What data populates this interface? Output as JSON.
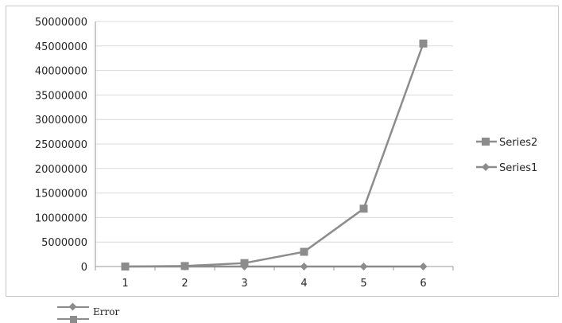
{
  "chart_data": {
    "type": "line",
    "categories": [
      "1",
      "2",
      "3",
      "4",
      "5",
      "6"
    ],
    "y_ticks": [
      "0",
      "5000000",
      "10000000",
      "15000000",
      "20000000",
      "25000000",
      "30000000",
      "35000000",
      "40000000",
      "45000000",
      "50000000"
    ],
    "ylim": [
      0,
      50000000
    ],
    "grid": true,
    "legend_position": "right",
    "series": [
      {
        "name": "Series2",
        "marker": "square",
        "color": "#8c8c8c",
        "values": [
          0,
          100000,
          700000,
          3000000,
          11800000,
          45500000
        ]
      },
      {
        "name": "Series1",
        "marker": "diamond",
        "color": "#8c8c8c",
        "values": [
          0,
          0,
          0,
          0,
          0,
          0
        ]
      }
    ]
  },
  "bottom_legend": {
    "label": "Error"
  }
}
